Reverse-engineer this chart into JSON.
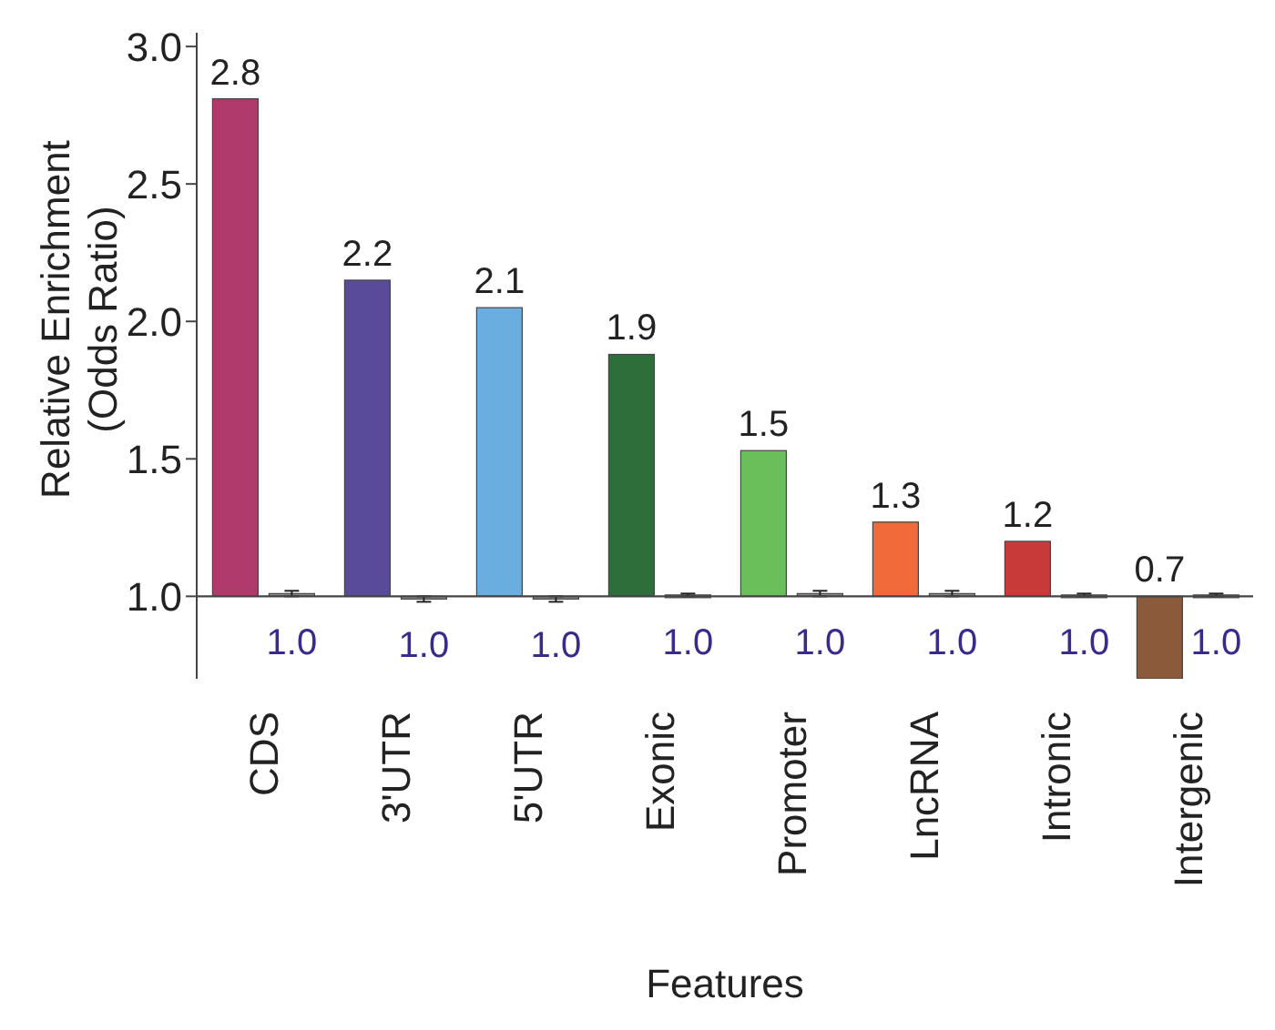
{
  "chart_data": {
    "type": "bar",
    "xlabel": "Features",
    "ylabel": "Relative Enrichment\n(Odds Ratio)",
    "categories": [
      "CDS",
      "3'UTR",
      "5'UTR",
      "Exonic",
      "Promoter",
      "LncRNA",
      "Intronic",
      "Intergenic"
    ],
    "ylim": [
      0.7,
      3.05
    ],
    "yticks": [
      {
        "value": 1,
        "label": "1.0"
      },
      {
        "value": 1.5,
        "label": "1.5"
      },
      {
        "value": 2,
        "label": "2.0"
      },
      {
        "value": 2.5,
        "label": "2.5"
      },
      {
        "value": 3,
        "label": "3.0"
      }
    ],
    "series": [
      {
        "colors": [
          "#b03a6a",
          "#5a4a9a",
          "#6aaee0",
          "#2e6e3a",
          "#6abf5a",
          "#f06a3a",
          "#c83a3a",
          "#8a5a3a"
        ],
        "base": [
          1,
          1,
          1,
          1,
          1,
          1,
          1,
          1
        ],
        "values": [
          1.81,
          1.15,
          1.05,
          0.88,
          0.53,
          0.27,
          0.2,
          -0.3
        ],
        "value_labels": [
          "2.8",
          "2.2",
          "2.1",
          "1.9",
          "1.5",
          "1.3",
          "1.2",
          "0.7"
        ]
      },
      {
        "color": "#8a8a8a",
        "base": [
          1,
          1,
          1,
          1,
          1,
          1,
          1,
          1
        ],
        "values": [
          0.01,
          -0.01,
          -0.01,
          0.005,
          0.01,
          0.01,
          0.005,
          0.005
        ],
        "errors": [
          0.01,
          0.01,
          0.01,
          0.005,
          0.01,
          0.01,
          0.005,
          0.005
        ],
        "value_labels": [
          "1.0",
          "1.0",
          "1.0",
          "1.0",
          "1.0",
          "1.0",
          "1.0",
          "1.0"
        ]
      }
    ]
  }
}
